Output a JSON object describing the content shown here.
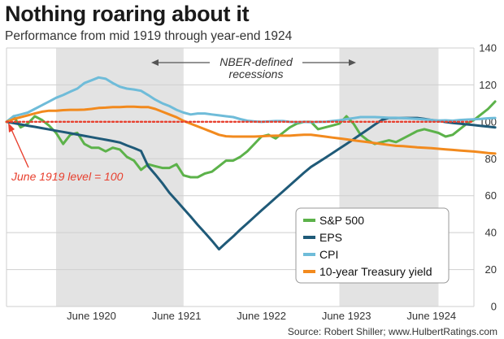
{
  "title": "Nothing roaring about it",
  "subtitle": "Performance from mid 1919 through year-end 1924",
  "source": "Source: Robert Shiller; www.HulbertRatings.com",
  "colors": {
    "sp500": "#5cb24a",
    "eps": "#1f5a78",
    "cpi": "#6fbcd9",
    "treasury": "#f28a1e",
    "baseline": "#e8402f",
    "recession": "#e3e3e3",
    "grid": "#cfcfcf"
  },
  "chart_data": {
    "type": "line",
    "title": "Nothing roaring about it",
    "subtitle": "Performance from mid 1919 through year-end 1924",
    "xlabel": "",
    "ylabel": "",
    "x_start": "1919-06",
    "x_end": "1924-12",
    "x_step": "month",
    "ylim": [
      0,
      140
    ],
    "y_ticks": [
      0,
      20,
      40,
      60,
      80,
      100,
      120,
      140
    ],
    "y_axis_side": "right",
    "x_ticks": [
      {
        "date": "1920-06",
        "label": "June 1920"
      },
      {
        "date": "1921-06",
        "label": "June 1921"
      },
      {
        "date": "1922-06",
        "label": "June 1922"
      },
      {
        "date": "1923-06",
        "label": "June 1923"
      },
      {
        "date": "1924-06",
        "label": "June 1924"
      }
    ],
    "grid": "horizontal",
    "recessions": [
      {
        "start": "1920-01",
        "end": "1921-07"
      },
      {
        "start": "1923-05",
        "end": "1924-07"
      }
    ],
    "baseline": {
      "y": 100,
      "label": "June 1919 level = 100"
    },
    "annotations": [
      {
        "text_line1": "NBER-defined",
        "text_line2": "recessions"
      }
    ],
    "legend_position": "bottom-right",
    "series": [
      {
        "key": "sp500",
        "name": "S&P 500",
        "values": [
          100,
          103,
          97,
          99,
          103,
          101,
          98,
          94,
          88,
          93,
          94,
          88,
          86,
          86,
          84,
          86,
          85,
          81,
          79,
          74,
          77,
          76,
          75,
          75,
          77,
          71,
          70,
          70,
          72,
          73,
          76,
          79,
          79,
          81,
          84,
          88,
          92,
          93,
          91,
          94,
          97,
          99,
          100,
          100,
          96,
          97,
          98,
          99,
          103,
          99,
          93,
          90,
          88,
          89,
          90,
          89,
          91,
          93,
          95,
          96,
          95,
          94,
          92,
          93,
          96,
          99,
          101,
          104,
          107,
          111
        ]
      },
      {
        "key": "eps",
        "name": "EPS",
        "values": [
          100,
          99.3,
          98.6,
          97.9,
          97.3,
          96.6,
          95.9,
          95.2,
          94.5,
          93.8,
          93.1,
          92.4,
          91.7,
          91,
          90.3,
          89.6,
          88.8,
          87.2,
          85.8,
          84.2,
          76,
          71.5,
          66.8,
          61.6,
          57.3,
          53,
          48.7,
          44.2,
          40,
          35.6,
          31,
          34.5,
          37.9,
          41.6,
          45,
          48.5,
          52,
          55.4,
          58.8,
          62.2,
          65.6,
          69,
          72.4,
          75.6,
          78,
          80.5,
          83,
          85.5,
          88,
          90.6,
          93.2,
          95.8,
          98.5,
          101,
          102.1,
          102.1,
          102.1,
          102.1,
          102.1,
          101.6,
          101,
          100.5,
          99.9,
          99.4,
          99,
          98.6,
          98.2,
          97.8,
          97.4,
          97
        ]
      },
      {
        "key": "cpi",
        "name": "CPI",
        "values": [
          100,
          103,
          104,
          105,
          107,
          109,
          111,
          113,
          114.5,
          116.3,
          118,
          121,
          122.5,
          124,
          123.3,
          121,
          119,
          118,
          117.5,
          116.8,
          114.5,
          112,
          110,
          108.5,
          106.5,
          105,
          104,
          104.5,
          104.5,
          104,
          103.5,
          103,
          102.6,
          101.5,
          100.6,
          100.2,
          100,
          100.2,
          100.4,
          100.4,
          100,
          99.8,
          100,
          99.8,
          100,
          100,
          100.4,
          100.8,
          101.5,
          102,
          102.6,
          102.6,
          102.6,
          102.4,
          102.2,
          102.2,
          102,
          101.8,
          101.6,
          101.3,
          101,
          100.7,
          100.8,
          100.6,
          101,
          101.2,
          101.4,
          101.6,
          101.9,
          102.1
        ]
      },
      {
        "key": "treasury",
        "name": "10-year Treasury yield",
        "values": [
          100,
          101.5,
          102.5,
          103.5,
          104.5,
          105.5,
          106,
          106,
          106.3,
          106.5,
          106.5,
          106.6,
          107,
          107.5,
          107.7,
          108,
          108,
          108.2,
          108.2,
          108,
          108,
          107,
          105.5,
          104,
          102.5,
          100.5,
          99,
          97.5,
          96,
          94.5,
          93,
          92.2,
          92,
          92,
          92,
          92,
          92.2,
          92.4,
          92.5,
          92.5,
          92.5,
          92.8,
          93,
          93,
          92.5,
          92,
          91.5,
          91,
          90.5,
          90,
          89.5,
          89,
          88.5,
          88,
          87.5,
          87,
          86.8,
          86.5,
          86.2,
          86,
          85.7,
          85.4,
          85.1,
          84.8,
          84.5,
          84.2,
          83.9,
          83.5,
          83.1,
          82.8
        ]
      }
    ]
  }
}
